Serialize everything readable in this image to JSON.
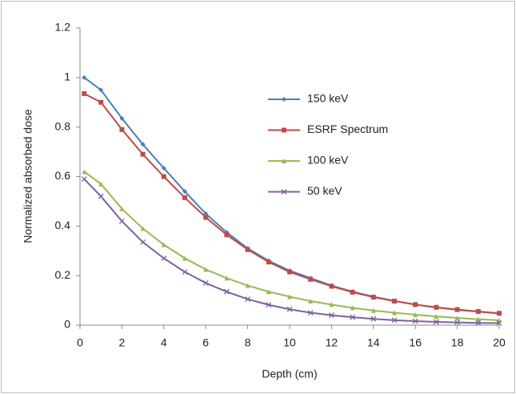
{
  "chart_data": {
    "type": "line",
    "x_label": "Depth (cm)",
    "y_label": "Normalized absorbed dose",
    "x": [
      0.2,
      1,
      2,
      3,
      4,
      5,
      6,
      7,
      8,
      9,
      10,
      11,
      12,
      13,
      14,
      15,
      16,
      17,
      18,
      19,
      20
    ],
    "series": [
      {
        "name": "150 keV",
        "color": "#4a7ebb",
        "marker": "diamond",
        "values": [
          1.0,
          0.95,
          0.835,
          0.73,
          0.634,
          0.54,
          0.45,
          0.375,
          0.31,
          0.26,
          0.22,
          0.19,
          0.16,
          0.135,
          0.115,
          0.098,
          0.083,
          0.071,
          0.062,
          0.054,
          0.047
        ]
      },
      {
        "name": "ESRF Spectrum",
        "color": "#be4b48",
        "marker": "square",
        "values": [
          0.935,
          0.9,
          0.79,
          0.69,
          0.6,
          0.515,
          0.435,
          0.365,
          0.305,
          0.255,
          0.215,
          0.185,
          0.157,
          0.133,
          0.113,
          0.097,
          0.083,
          0.072,
          0.063,
          0.055,
          0.048
        ]
      },
      {
        "name": "100 keV",
        "color": "#98b954",
        "marker": "triangle",
        "values": [
          0.62,
          0.57,
          0.47,
          0.39,
          0.325,
          0.27,
          0.225,
          0.19,
          0.16,
          0.135,
          0.115,
          0.097,
          0.083,
          0.07,
          0.059,
          0.05,
          0.042,
          0.035,
          0.029,
          0.024,
          0.02
        ]
      },
      {
        "name": "50 keV",
        "color": "#7d60a0",
        "marker": "x",
        "values": [
          0.59,
          0.52,
          0.42,
          0.335,
          0.27,
          0.215,
          0.17,
          0.135,
          0.105,
          0.082,
          0.064,
          0.05,
          0.04,
          0.032,
          0.025,
          0.02,
          0.016,
          0.013,
          0.011,
          0.009,
          0.008
        ]
      }
    ],
    "xlim": [
      0,
      20
    ],
    "xticks": [
      0,
      2,
      4,
      6,
      8,
      10,
      12,
      14,
      16,
      18,
      20
    ],
    "ylim": [
      0,
      1.2
    ],
    "yticks": [
      0,
      0.2,
      0.4,
      0.6,
      0.8,
      1,
      1.2
    ],
    "grid": false,
    "legend": "top-center"
  }
}
